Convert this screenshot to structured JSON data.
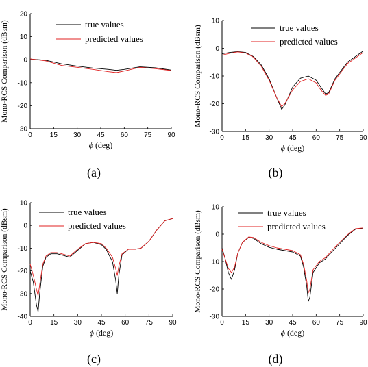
{
  "chart_data": [
    {
      "type": "line",
      "caption": "(a)",
      "xlabel": "(deg)",
      "xsymbol": "ϕ",
      "ylabel": "Mono-RCS Comparison (dBsm)",
      "xlim": [
        0,
        90
      ],
      "ylim": [
        -30,
        20
      ],
      "xticks": [
        0,
        15,
        30,
        45,
        60,
        75,
        90
      ],
      "yticks": [
        20,
        10,
        0,
        -10,
        -20,
        -30
      ],
      "legend": "top-center",
      "grid": false,
      "series": [
        {
          "name": "true values",
          "color": "#000000",
          "x": [
            0,
            10,
            20,
            30,
            40,
            50,
            55,
            60,
            70,
            80,
            90
          ],
          "y": [
            0.3,
            -0.2,
            -1.8,
            -2.8,
            -3.6,
            -4.2,
            -4.6,
            -4.2,
            -3.1,
            -3.5,
            -4.5
          ]
        },
        {
          "name": "predicted values",
          "color": "#e02020",
          "x": [
            0,
            10,
            20,
            30,
            40,
            50,
            55,
            60,
            70,
            80,
            90
          ],
          "y": [
            0.4,
            -0.5,
            -2.5,
            -3.3,
            -4.2,
            -5.2,
            -5.6,
            -4.9,
            -3.3,
            -3.9,
            -4.7
          ]
        }
      ]
    },
    {
      "type": "line",
      "caption": "(b)",
      "xlabel": "(deg)",
      "xsymbol": "ϕ",
      "ylabel": "Mono-RCS Comparison (dBsm)",
      "xlim": [
        0,
        90
      ],
      "ylim": [
        -30,
        10
      ],
      "xticks": [
        0,
        15,
        30,
        45,
        60,
        75,
        90
      ],
      "yticks": [
        10,
        0,
        -10,
        -20,
        -30
      ],
      "legend": "top-right",
      "grid": false,
      "series": [
        {
          "name": "true values",
          "color": "#000000",
          "x": [
            0,
            5,
            10,
            15,
            20,
            25,
            30,
            35,
            38,
            40,
            45,
            50,
            55,
            60,
            63,
            66,
            68,
            72,
            80,
            90
          ],
          "y": [
            -2,
            -1.5,
            -1.2,
            -1.5,
            -3,
            -6,
            -11,
            -18,
            -22,
            -20.5,
            -14,
            -10.8,
            -10,
            -11.5,
            -14,
            -16.5,
            -16,
            -11,
            -5,
            -1
          ]
        },
        {
          "name": "predicted values",
          "color": "#e02020",
          "x": [
            0,
            5,
            10,
            15,
            20,
            25,
            30,
            35,
            38,
            40,
            45,
            50,
            55,
            60,
            63,
            66,
            68,
            72,
            80,
            90
          ],
          "y": [
            -2.5,
            -1.8,
            -1.3,
            -1.7,
            -3.2,
            -6.5,
            -11.5,
            -18,
            -21,
            -20,
            -15,
            -12,
            -11,
            -12.5,
            -15,
            -17,
            -16.5,
            -11.5,
            -5.5,
            -1.5
          ]
        }
      ]
    },
    {
      "type": "line",
      "caption": "(c)",
      "xlabel": "(deg)",
      "xsymbol": "ϕ",
      "ylabel": "Mono-RCS Comparison (dBsm)",
      "xlim": [
        0,
        90
      ],
      "ylim": [
        -40,
        10
      ],
      "xticks": [
        0,
        15,
        30,
        45,
        60,
        75,
        90
      ],
      "yticks": [
        10,
        0,
        -10,
        -20,
        -30,
        -40
      ],
      "legend": "top-right",
      "grid": false,
      "series": [
        {
          "name": "true values",
          "color": "#000000",
          "x": [
            0,
            2,
            4,
            5,
            6,
            8,
            10,
            13,
            17,
            20,
            25,
            30,
            35,
            40,
            45,
            48,
            52,
            54,
            55,
            56,
            58,
            62,
            66,
            70,
            75,
            80,
            85,
            90
          ],
          "y": [
            -20,
            -25,
            -35,
            -38,
            -30,
            -18,
            -14,
            -12.5,
            -12.5,
            -13,
            -14,
            -11,
            -8,
            -7.5,
            -8.5,
            -10.5,
            -16,
            -24,
            -30,
            -22,
            -13,
            -10.5,
            -10.5,
            -10,
            -7,
            -2,
            2,
            3
          ]
        },
        {
          "name": "predicted values",
          "color": "#e02020",
          "x": [
            0,
            2,
            4,
            5,
            6,
            8,
            10,
            13,
            17,
            20,
            25,
            30,
            35,
            40,
            45,
            48,
            52,
            54,
            55,
            56,
            58,
            62,
            66,
            70,
            75,
            80,
            85,
            90
          ],
          "y": [
            -17,
            -22,
            -28,
            -31,
            -26,
            -17,
            -13.5,
            -12,
            -12,
            -12.5,
            -13.5,
            -10.5,
            -8,
            -7.5,
            -8,
            -10,
            -14,
            -19,
            -22,
            -18,
            -12.5,
            -10.5,
            -10.5,
            -10,
            -7,
            -2,
            2,
            3
          ]
        }
      ]
    },
    {
      "type": "line",
      "caption": "(d)",
      "xlabel": "(deg)",
      "xsymbol": "ϕ",
      "ylabel": "Mono-RCS Comparison (dBsm)",
      "xlim": [
        0,
        90
      ],
      "ylim": [
        -30,
        10
      ],
      "xticks": [
        0,
        15,
        30,
        45,
        60,
        75,
        90
      ],
      "yticks": [
        10,
        0,
        -10,
        -20,
        -30
      ],
      "legend": "top-right",
      "grid": false,
      "series": [
        {
          "name": "true values",
          "color": "#000000",
          "x": [
            0,
            2,
            4,
            6,
            8,
            10,
            13,
            17,
            20,
            25,
            30,
            35,
            40,
            45,
            50,
            52,
            54,
            55,
            56,
            58,
            62,
            66,
            70,
            75,
            80,
            85,
            90
          ],
          "y": [
            -5,
            -9,
            -14,
            -16.5,
            -13,
            -7,
            -3,
            -1.2,
            -1.5,
            -3.5,
            -4.8,
            -5.5,
            -6,
            -6.5,
            -8,
            -12,
            -19,
            -24.5,
            -23,
            -14,
            -10.5,
            -9,
            -6.5,
            -3.5,
            -0.5,
            1.8,
            2.2
          ]
        },
        {
          "name": "predicted values",
          "color": "#e02020",
          "x": [
            0,
            2,
            4,
            6,
            8,
            10,
            13,
            17,
            20,
            25,
            30,
            35,
            40,
            45,
            50,
            52,
            54,
            55,
            56,
            58,
            62,
            66,
            70,
            75,
            80,
            85,
            90
          ],
          "y": [
            -5.5,
            -9,
            -12.5,
            -14,
            -12,
            -7,
            -3,
            -1,
            -1.2,
            -3,
            -4.2,
            -5,
            -5.5,
            -6,
            -7.5,
            -11,
            -17,
            -21.5,
            -20,
            -13,
            -10,
            -8.5,
            -6,
            -3,
            -0.2,
            2,
            2.3
          ]
        }
      ]
    }
  ]
}
